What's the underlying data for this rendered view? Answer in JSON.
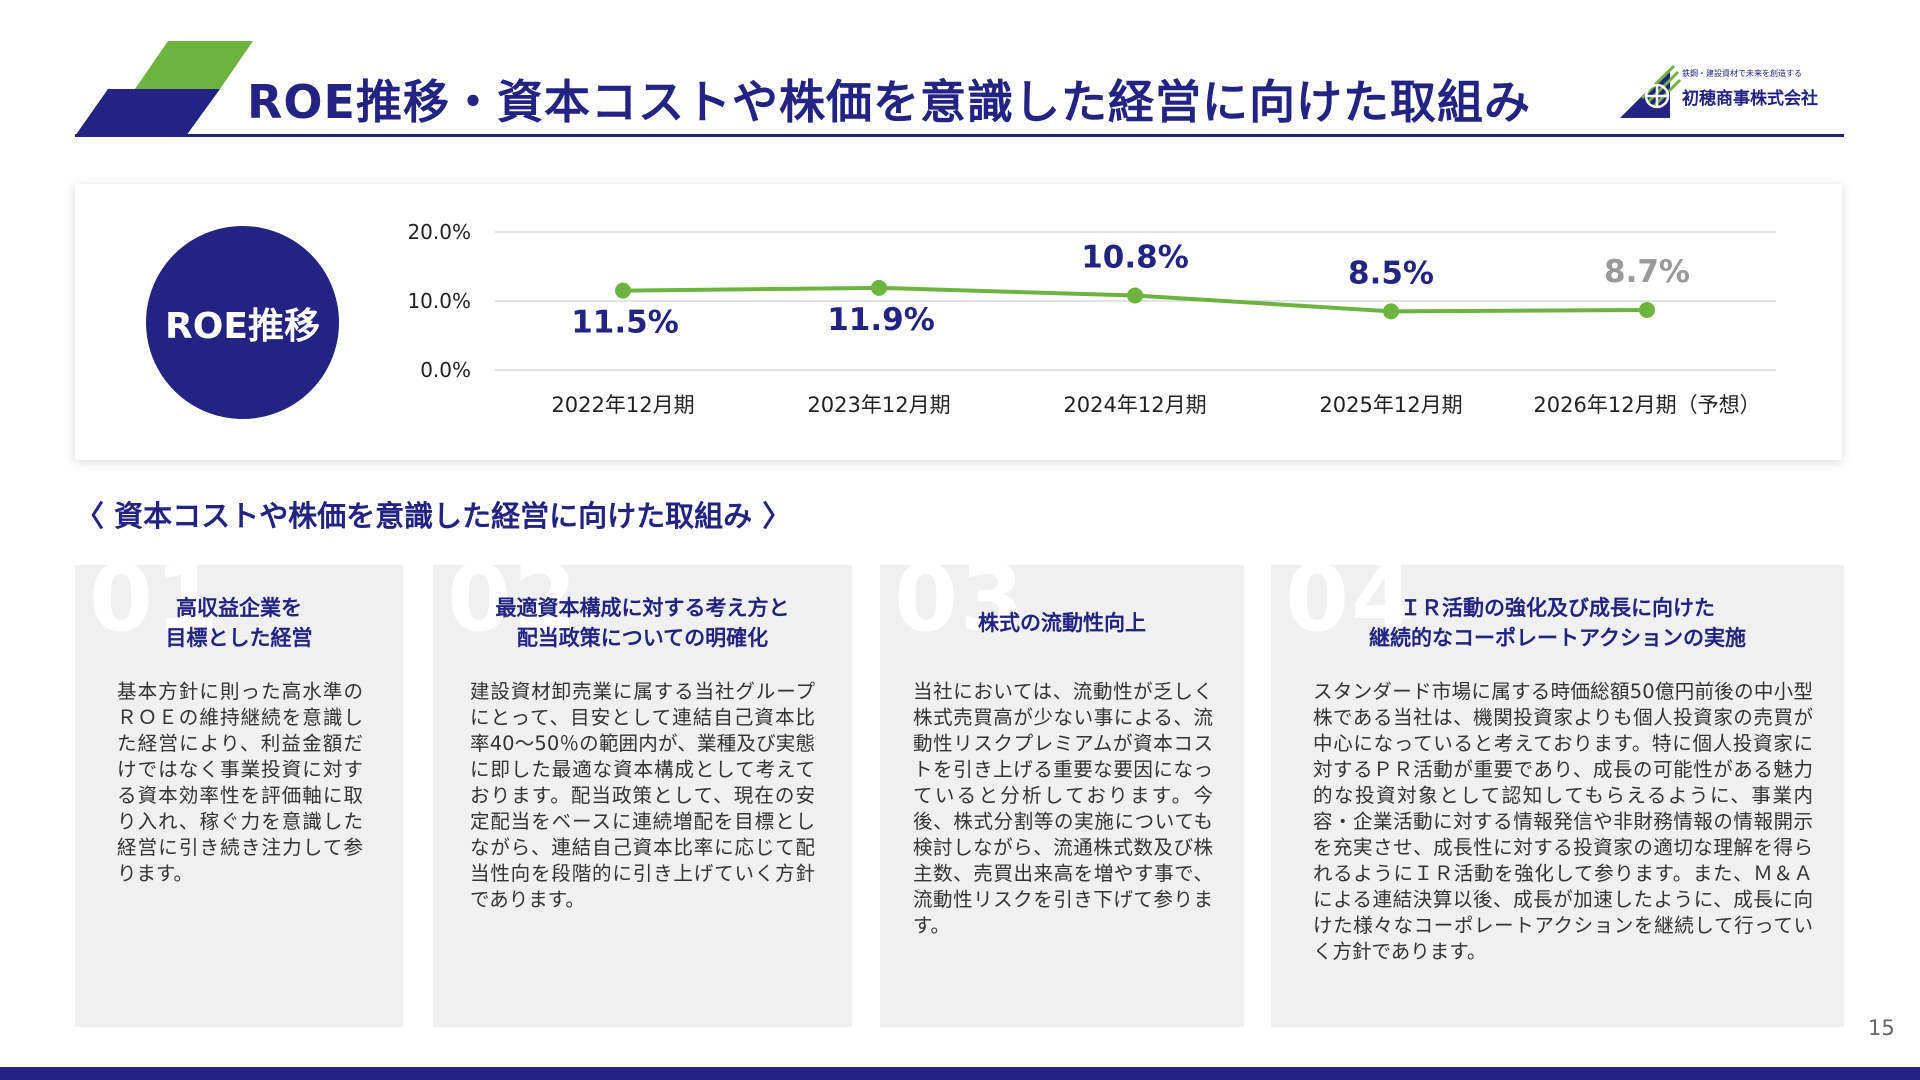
{
  "header": {
    "title": "ROE推移・資本コストや株価を意識した経営に向けた取組み",
    "brand_navy": "#232383",
    "brand_green": "#6db33f"
  },
  "logo": {
    "tagline": "鉄鋼・建設資材で未来を創造する",
    "company_name": "初穂商事株式会社"
  },
  "roe_label": "ROE推移",
  "chart_data": {
    "type": "line",
    "categories": [
      "2022年12月期",
      "2023年12月期",
      "2024年12月期",
      "2025年12月期",
      "2026年12月期（予想）"
    ],
    "series": [
      {
        "values": [
          11.5,
          11.9,
          10.8,
          8.5,
          8.7
        ]
      }
    ],
    "data_labels": [
      "11.5%",
      "11.9%",
      "10.8%",
      "8.5%",
      "8.7%"
    ],
    "forecast_index": 4,
    "y_ticks": [
      "0.0%",
      "10.0%",
      "20.0%"
    ],
    "ylim": [
      0,
      20
    ],
    "grid": true,
    "line_color": "#6db33f",
    "label_color": "#232383",
    "forecast_label_color": "#9a9a9a"
  },
  "section_heading": "〈 資本コストや株価を意識した経営に向けた取組み 〉",
  "cards": [
    {
      "number": "01",
      "title": "高収益企業を\n目標とした経営",
      "body": "基本方針に則った高水準のＲＯＥの維持継続を意識した経営により、利益金額だけではなく事業投資に対する資本効率性を評価軸に取り入れ、稼ぐ力を意識した経営に引き続き注力して参ります。"
    },
    {
      "number": "02",
      "title": "最適資本構成に対する考え方と\n配当政策についての明確化",
      "body": "建設資材卸売業に属する当社グループにとって、目安として連結自己資本比率40～50％の範囲内が、業種及び実態に即した最適な資本構成として考えております。配当政策として、現在の安定配当をベースに連続増配を目標としながら、連結自己資本比率に応じて配当性向を段階的に引き上げていく方針であります。"
    },
    {
      "number": "03",
      "title": "株式の流動性向上",
      "body": "当社においては、流動性が乏しく株式売買高が少ない事による、流動性リスクプレミアムが資本コストを引き上げる重要な要因になっていると分析しております。今後、株式分割等の実施についても検討しながら、流通株式数及び株主数、売買出来高を増やす事で、流動性リスクを引き下げて参ります。"
    },
    {
      "number": "04",
      "title": "ＩＲ活動の強化及び成長に向けた\n継続的なコーポレートアクションの実施",
      "body": "スタンダード市場に属する時価総額50億円前後の中小型株である当社は、機関投資家よりも個人投資家の売買が中心になっていると考えております。特に個人投資家に対するＰＲ活動が重要であり、成長の可能性がある魅力的な投資対象として認知してもらえるように、事業内容・企業活動に対する情報発信や非財務情報の情報開示を充実させ、成長性に対する投資家の適切な理解を得られるようにＩＲ活動を強化して参ります。また、Ｍ＆Ａによる連結決算以後、成長が加速したように、成長に向けた様々なコーポレートアクションを継続して行っていく方針であります。"
    }
  ],
  "page_number": "15"
}
